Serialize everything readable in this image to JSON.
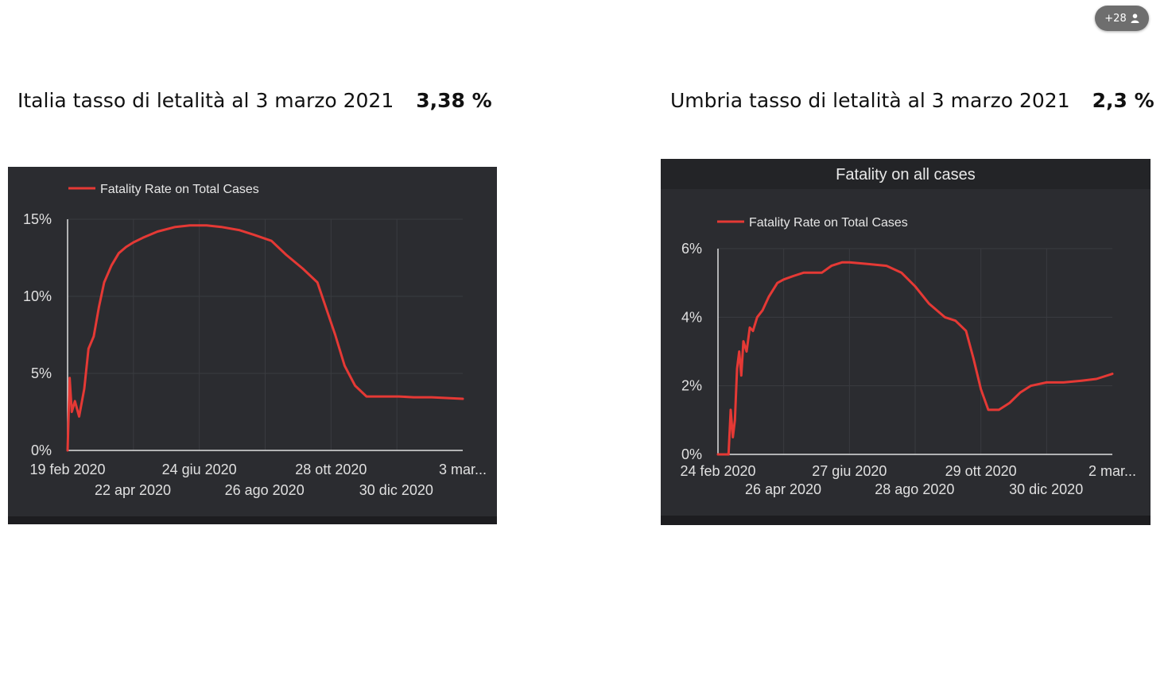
{
  "participants": {
    "count_label": "+28",
    "icon": "person-icon"
  },
  "headings": {
    "left": {
      "text": "Italia tasso di letalità al 3 marzo 2021",
      "value": "3,38 %"
    },
    "right": {
      "text": "Umbria tasso di letalità al 3 marzo 2021",
      "value": "2,3 %"
    }
  },
  "colors": {
    "line": "#e53935",
    "panel": "#2b2c30",
    "axis": "#e0e0e0",
    "grid": "#3a3b40"
  },
  "chart_data": [
    {
      "type": "line",
      "title": "",
      "legend": "Fatality Rate on Total Cases",
      "x_tick_labels_top": [
        "19 feb 2020",
        "24 giu 2020",
        "28 ott 2020",
        "3 mar..."
      ],
      "x_tick_labels_bottom": [
        "22 apr 2020",
        "26 ago 2020",
        "30 dic 2020"
      ],
      "y_tick_labels": [
        "0%",
        "5%",
        "10%",
        "15%"
      ],
      "ylim": [
        0,
        15
      ],
      "grid": true,
      "series": [
        {
          "name": "Fatality Rate on Total Cases",
          "x": [
            "2020-02-19",
            "2020-02-21",
            "2020-02-23",
            "2020-02-26",
            "2020-03-01",
            "2020-03-06",
            "2020-03-10",
            "2020-03-15",
            "2020-03-20",
            "2020-03-25",
            "2020-04-01",
            "2020-04-08",
            "2020-04-15",
            "2020-04-22",
            "2020-05-01",
            "2020-05-15",
            "2020-06-01",
            "2020-06-15",
            "2020-07-01",
            "2020-07-15",
            "2020-08-01",
            "2020-08-15",
            "2020-09-01",
            "2020-09-15",
            "2020-10-01",
            "2020-10-15",
            "2020-10-22",
            "2020-11-01",
            "2020-11-10",
            "2020-11-20",
            "2020-12-01",
            "2020-12-10",
            "2020-12-20",
            "2021-01-01",
            "2021-01-15",
            "2021-02-01",
            "2021-02-15",
            "2021-03-03"
          ],
          "values": [
            0,
            4.7,
            2.5,
            3.2,
            2.2,
            4.0,
            6.6,
            7.4,
            9.3,
            10.9,
            12.0,
            12.8,
            13.2,
            13.5,
            13.8,
            14.2,
            14.5,
            14.6,
            14.6,
            14.5,
            14.3,
            14.0,
            13.6,
            12.7,
            11.8,
            10.9,
            9.5,
            7.5,
            5.5,
            4.2,
            3.5,
            3.5,
            3.5,
            3.5,
            3.45,
            3.45,
            3.4,
            3.35
          ]
        }
      ]
    },
    {
      "type": "line",
      "title": "Fatality on all cases",
      "legend": "Fatality Rate on Total Cases",
      "x_tick_labels_top": [
        "24 feb 2020",
        "27 giu 2020",
        "29 ott 2020",
        "2 mar..."
      ],
      "x_tick_labels_bottom": [
        "26 apr 2020",
        "28 ago 2020",
        "30 dic 2020"
      ],
      "y_tick_labels": [
        "0%",
        "2%",
        "4%",
        "6%"
      ],
      "ylim": [
        0,
        6
      ],
      "grid": true,
      "series": [
        {
          "name": "Fatality Rate on Total Cases",
          "x": [
            "2020-02-24",
            "2020-03-05",
            "2020-03-07",
            "2020-03-09",
            "2020-03-11",
            "2020-03-13",
            "2020-03-15",
            "2020-03-17",
            "2020-03-19",
            "2020-03-22",
            "2020-03-25",
            "2020-03-28",
            "2020-04-01",
            "2020-04-06",
            "2020-04-12",
            "2020-04-20",
            "2020-04-26",
            "2020-05-05",
            "2020-05-15",
            "2020-06-01",
            "2020-06-10",
            "2020-06-20",
            "2020-06-27",
            "2020-07-15",
            "2020-08-01",
            "2020-08-15",
            "2020-08-28",
            "2020-09-10",
            "2020-09-25",
            "2020-10-05",
            "2020-10-15",
            "2020-10-22",
            "2020-10-29",
            "2020-11-05",
            "2020-11-15",
            "2020-11-25",
            "2020-12-05",
            "2020-12-15",
            "2020-12-30",
            "2021-01-15",
            "2021-02-01",
            "2021-02-15",
            "2021-03-02"
          ],
          "values": [
            0,
            0,
            1.3,
            0.5,
            1.0,
            2.5,
            3.0,
            2.3,
            3.3,
            3.0,
            3.7,
            3.6,
            4.0,
            4.2,
            4.6,
            5.0,
            5.1,
            5.2,
            5.3,
            5.3,
            5.5,
            5.6,
            5.6,
            5.55,
            5.5,
            5.3,
            4.9,
            4.4,
            4.0,
            3.9,
            3.6,
            2.8,
            1.9,
            1.3,
            1.3,
            1.5,
            1.8,
            2.0,
            2.1,
            2.1,
            2.15,
            2.2,
            2.35
          ]
        }
      ]
    }
  ]
}
